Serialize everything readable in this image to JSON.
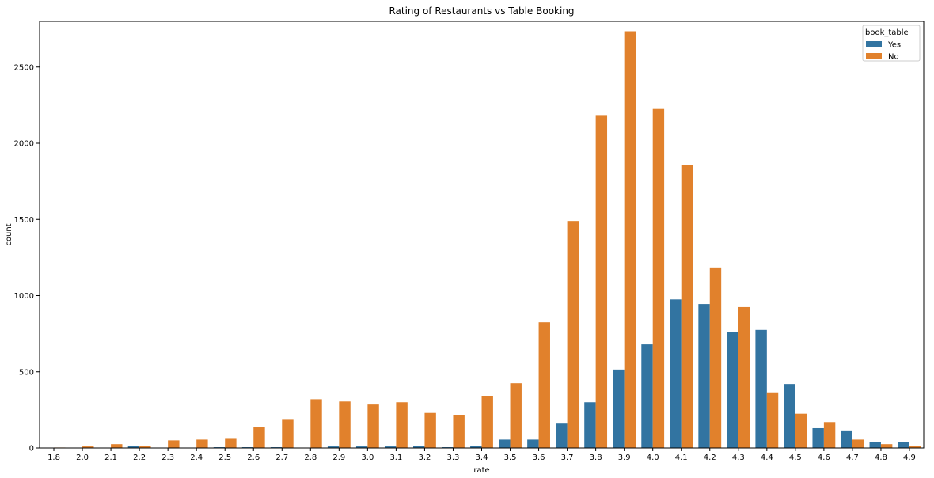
{
  "chart_data": {
    "type": "bar",
    "title": "Rating of Restaurants vs Table Booking",
    "xlabel": "rate",
    "ylabel": "count",
    "ylim": [
      0,
      2800
    ],
    "yticks": [
      0,
      500,
      1000,
      1500,
      2000,
      2500
    ],
    "categories": [
      "1.8",
      "2.0",
      "2.1",
      "2.2",
      "2.3",
      "2.4",
      "2.5",
      "2.6",
      "2.7",
      "2.8",
      "2.9",
      "3.0",
      "3.1",
      "3.2",
      "3.3",
      "3.4",
      "3.5",
      "3.6",
      "3.7",
      "3.8",
      "3.9",
      "4.0",
      "4.1",
      "4.2",
      "4.3",
      "4.4",
      "4.5",
      "4.6",
      "4.7",
      "4.8",
      "4.9"
    ],
    "legend": {
      "title": "book_table",
      "placement": "top-right"
    },
    "series": [
      {
        "name": "Yes",
        "color": "#3274a1",
        "values": [
          0,
          0,
          0,
          15,
          0,
          0,
          5,
          5,
          5,
          0,
          10,
          10,
          10,
          15,
          5,
          15,
          55,
          55,
          160,
          300,
          515,
          680,
          975,
          945,
          760,
          775,
          420,
          130,
          115,
          40,
          40
        ]
      },
      {
        "name": "No",
        "color": "#e1812c",
        "values": [
          3,
          10,
          25,
          15,
          50,
          55,
          60,
          135,
          185,
          320,
          305,
          285,
          300,
          230,
          215,
          340,
          425,
          825,
          1490,
          2185,
          2735,
          2225,
          1855,
          1180,
          925,
          365,
          225,
          170,
          55,
          25,
          15
        ]
      }
    ]
  }
}
